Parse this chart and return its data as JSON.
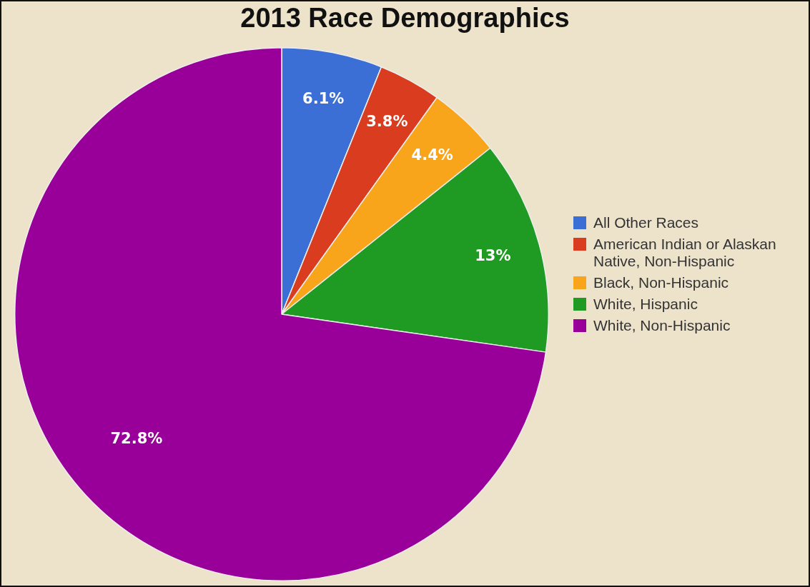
{
  "chart_data": {
    "type": "pie",
    "title": "2013 Race Demographics",
    "categories": [
      "All Other Races",
      "American Indian or Alaskan Native, Non-Hispanic",
      "Black, Non-Hispanic",
      "White, Hispanic",
      "White, Non-Hispanic"
    ],
    "values": [
      6.1,
      3.8,
      4.4,
      13,
      72.8
    ],
    "colors": [
      "#3b6fd6",
      "#d93c1f",
      "#f9a51b",
      "#1f9a22",
      "#990099"
    ],
    "value_labels": [
      "6.1%",
      "3.8%",
      "4.4%",
      "13%",
      "72.8%"
    ],
    "legend": "right"
  }
}
